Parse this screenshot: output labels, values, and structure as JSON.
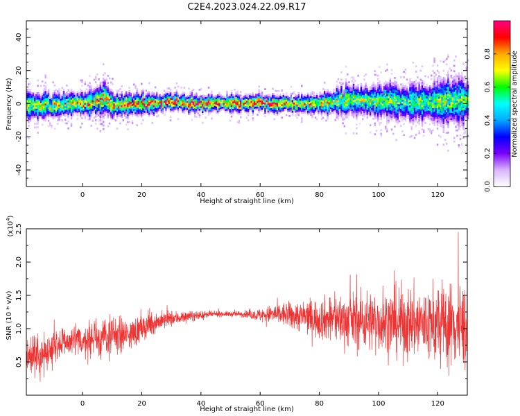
{
  "figure": {
    "title": "C2E4.2023.024.22.09.R17"
  },
  "chart_data": [
    {
      "type": "heatmap",
      "xlabel": "Height of straight line (km)",
      "ylabel": "Frequency (Hz)",
      "xlim": [
        -19,
        130
      ],
      "ylim": [
        -50,
        50
      ],
      "x_ticks": [
        0,
        20,
        40,
        60,
        80,
        100,
        120
      ],
      "y_ticks": [
        -40,
        -20,
        0,
        20,
        40
      ],
      "colorbar": {
        "label": "Normalized spectral amplitude",
        "range": [
          0,
          1
        ],
        "ticks": [
          0.0,
          0.2,
          0.4,
          0.6,
          0.8
        ],
        "colormap": [
          "#ffffff",
          "#d8b4ff",
          "#7a00ff",
          "#0000ff",
          "#00aaff",
          "#00ffff",
          "#00ff00",
          "#ffff00",
          "#ffaa00",
          "#ff0000",
          "#ff0080"
        ]
      },
      "band_profile": {
        "x": [
          -19,
          -10,
          0,
          8,
          10,
          20,
          30,
          40,
          50,
          60,
          70,
          80,
          85,
          90,
          100,
          110,
          120,
          125,
          130
        ],
        "center_hz": [
          -1,
          -1,
          0,
          3,
          -1,
          0,
          1,
          0,
          0,
          0.5,
          0,
          0,
          1,
          2,
          2,
          1,
          1,
          2,
          2
        ],
        "halfwidth_hz": [
          7,
          6,
          6,
          8,
          6,
          5,
          4,
          4,
          4,
          4,
          4,
          5,
          6,
          8,
          8,
          9,
          10,
          12,
          11
        ],
        "peak_amplitude": [
          0.75,
          0.8,
          0.85,
          0.8,
          0.85,
          0.95,
          0.98,
          0.98,
          1.0,
          0.98,
          0.95,
          0.85,
          0.75,
          0.72,
          0.7,
          0.65,
          0.7,
          0.7,
          0.65
        ]
      }
    },
    {
      "type": "line",
      "xlabel": "Height of straight line (km)",
      "ylabel": "SNR (10 * v/v)",
      "y_multiplier_label": "(x10",
      "y_multiplier_exp": "4",
      "y_multiplier_close": ")",
      "xlim": [
        -19,
        130
      ],
      "ylim": [
        0,
        2.5
      ],
      "x_ticks": [
        0,
        20,
        40,
        60,
        80,
        100,
        120
      ],
      "y_ticks": [
        0.5,
        1.0,
        1.5,
        2.0,
        2.5
      ],
      "y_tick_labels": [
        "0.5",
        "1.0",
        "1.5",
        "2.0",
        "2.5"
      ],
      "color": "#ee3333",
      "series": [
        {
          "x": [
            -19,
            -15,
            -10,
            -5,
            0,
            5,
            10,
            15,
            20,
            25,
            30,
            35,
            40,
            45,
            50,
            55,
            60,
            65,
            70,
            75,
            80,
            85,
            90,
            95,
            100,
            105,
            110,
            115,
            120,
            125,
            130
          ],
          "y_mean": [
            0.6,
            0.55,
            0.75,
            0.8,
            0.82,
            0.85,
            0.88,
            0.9,
            1.0,
            1.1,
            1.15,
            1.18,
            1.2,
            1.22,
            1.22,
            1.22,
            1.2,
            1.22,
            1.2,
            1.18,
            1.15,
            1.15,
            1.12,
            1.12,
            1.1,
            1.1,
            1.08,
            1.08,
            1.05,
            1.05,
            1.05
          ],
          "y_spread": [
            0.3,
            0.3,
            0.25,
            0.25,
            0.25,
            0.3,
            0.3,
            0.25,
            0.2,
            0.15,
            0.12,
            0.08,
            0.06,
            0.04,
            0.04,
            0.05,
            0.1,
            0.15,
            0.2,
            0.25,
            0.3,
            0.35,
            0.4,
            0.45,
            0.45,
            0.5,
            0.55,
            0.55,
            0.6,
            0.65,
            0.65
          ]
        }
      ]
    }
  ]
}
